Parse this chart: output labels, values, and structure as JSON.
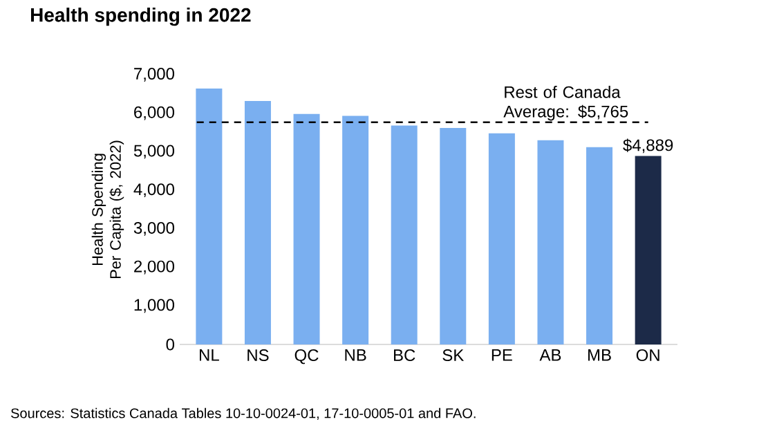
{
  "chart_data": {
    "type": "bar",
    "title": "Health spending in 2022",
    "ylabel": "Health Spending Per Capita ($, 2022)",
    "categories": [
      "NL",
      "NS",
      "QC",
      "NB",
      "BC",
      "SK",
      "PE",
      "AB",
      "MB",
      "ON"
    ],
    "values": [
      6640,
      6320,
      5980,
      5930,
      5680,
      5620,
      5480,
      5300,
      5120,
      4889
    ],
    "value_labels": [
      null,
      null,
      null,
      null,
      null,
      null,
      null,
      null,
      null,
      "$4,889"
    ],
    "colors": [
      "#7aaff0",
      "#7aaff0",
      "#7aaff0",
      "#7aaff0",
      "#7aaff0",
      "#7aaff0",
      "#7aaff0",
      "#7aaff0",
      "#7aaff0",
      "#1c2a48"
    ],
    "ylim": [
      0,
      7000
    ],
    "yticks": [
      0,
      {
        "value": 1000,
        "label": "1,000"
      },
      {
        "value": 2000,
        "label": "2,000"
      },
      {
        "value": 3000,
        "label": "3,000"
      },
      {
        "value": 4000,
        "label": "4,000"
      },
      {
        "value": 5000,
        "label": "5,000"
      },
      {
        "value": 6000,
        "label": "6,000"
      },
      {
        "value": 7000,
        "label": "7,000"
      }
    ],
    "ref_lines": [
      {
        "axis": "y",
        "value": 5765,
        "label": "Rest of Canada Average: $5,765",
        "color": "#000000",
        "line_style": "dashed"
      }
    ],
    "annotations": [
      "Sources: Statistics Canada Tables 10-10-0024-01, 17-10-0005-01 and FAO."
    ],
    "grid": false
  }
}
